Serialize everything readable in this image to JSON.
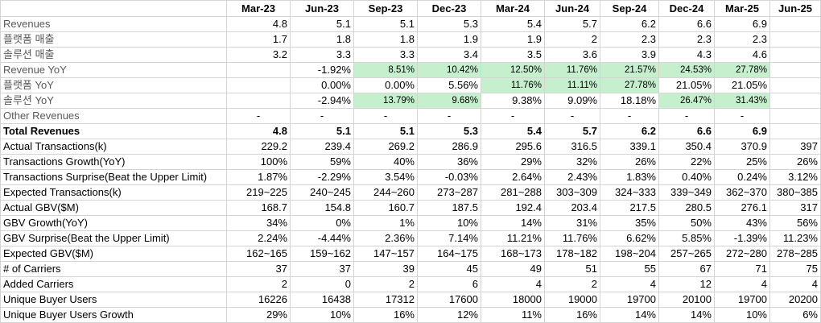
{
  "columns": [
    "",
    "Mar-23",
    "Jun-23",
    "Sep-23",
    "Dec-23",
    "Mar-24",
    "Jun-24",
    "Sep-24",
    "Dec-24",
    "Mar-25",
    "Jun-25"
  ],
  "rows": [
    {
      "label": "Revenues",
      "style": "gray",
      "cells": [
        "4.8",
        "5.1",
        "5.1",
        "5.3",
        "5.4",
        "5.7",
        "6.2",
        "6.6",
        "6.9",
        ""
      ]
    },
    {
      "label": "플랫폼 매출",
      "style": "gray",
      "cells": [
        "1.7",
        "1.8",
        "1.8",
        "1.9",
        "1.9",
        "2",
        "2.3",
        "2.3",
        "2.3",
        ""
      ]
    },
    {
      "label": "솔루션 매출",
      "style": "gray",
      "cells": [
        "3.2",
        "3.3",
        "3.3",
        "3.4",
        "3.5",
        "3.6",
        "3.9",
        "4.3",
        "4.6",
        ""
      ]
    },
    {
      "label": "Revenue YoY",
      "style": "gray",
      "green": [
        2,
        3,
        4,
        5,
        6,
        7,
        8
      ],
      "cells": [
        "",
        "-1.92%",
        "8.51%",
        "10.42%",
        "12.50%",
        "11.76%",
        "21.57%",
        "24.53%",
        "27.78%",
        ""
      ]
    },
    {
      "label": "플랫폼 YoY",
      "style": "gray",
      "green": [
        4,
        5,
        6
      ],
      "cells": [
        "",
        "0.00%",
        "0.00%",
        "5.56%",
        "11.76%",
        "11.11%",
        "27.78%",
        "21.05%",
        "21.05%",
        ""
      ]
    },
    {
      "label": "솔루션 YoY",
      "style": "gray",
      "green": [
        2,
        3,
        7,
        8
      ],
      "cells": [
        "",
        "-2.94%",
        "13.79%",
        "9.68%",
        "9.38%",
        "9.09%",
        "18.18%",
        "26.47%",
        "31.43%",
        ""
      ]
    },
    {
      "label": "Other Revenues",
      "style": "gray",
      "dash": true,
      "cells": [
        "-",
        "-",
        "-",
        "-",
        "-",
        "-",
        "-",
        "-",
        "-",
        ""
      ]
    },
    {
      "label": "Total Revenues",
      "style": "bold",
      "cells": [
        "4.8",
        "5.1",
        "5.1",
        "5.3",
        "5.4",
        "5.7",
        "6.2",
        "6.6",
        "6.9",
        ""
      ]
    },
    {
      "label": "Actual Transactions(k)",
      "cells": [
        "229.2",
        "239.4",
        "269.2",
        "286.9",
        "295.6",
        "316.5",
        "339.1",
        "350.4",
        "370.9",
        "397"
      ]
    },
    {
      "label": "Transactions Growth(YoY)",
      "cells": [
        "100%",
        "59%",
        "40%",
        "36%",
        "29%",
        "32%",
        "26%",
        "22%",
        "25%",
        "26%"
      ]
    },
    {
      "label": "Transactions Surprise(Beat the Upper Limit)",
      "cells": [
        "1.87%",
        "-2.29%",
        "3.54%",
        "-0.03%",
        "2.64%",
        "2.43%",
        "1.83%",
        "0.40%",
        "0.24%",
        "3.12%"
      ]
    },
    {
      "label": "Expected Transactions(k)",
      "cells": [
        "219~225",
        "240~245",
        "244~260",
        "273~287",
        "281~288",
        "303~309",
        "324~333",
        "339~349",
        "362~370",
        "380~385"
      ]
    },
    {
      "label": "Actual GBV($M)",
      "cells": [
        "168.7",
        "154.8",
        "160.7",
        "187.5",
        "192.4",
        "203.4",
        "217.5",
        "280.5",
        "276.1",
        "317"
      ]
    },
    {
      "label": "GBV Growth(YoY)",
      "cells": [
        "34%",
        "0%",
        "1%",
        "10%",
        "14%",
        "31%",
        "35%",
        "50%",
        "43%",
        "56%"
      ]
    },
    {
      "label": "GBV Surprise(Beat the Upper Limit)",
      "cells": [
        "2.24%",
        "-4.44%",
        "2.36%",
        "7.14%",
        "11.21%",
        "11.76%",
        "6.62%",
        "5.85%",
        "-1.39%",
        "11.23%"
      ]
    },
    {
      "label": "Expected GBV($M)",
      "cells": [
        "162~165",
        "159~162",
        "147~157",
        "164~175",
        "168~173",
        "178~182",
        "198~204",
        "257~265",
        "272~280",
        "278~285"
      ]
    },
    {
      "label": "# of Carriers",
      "cells": [
        "37",
        "37",
        "39",
        "45",
        "49",
        "51",
        "55",
        "67",
        "71",
        "75"
      ]
    },
    {
      "label": "Added Carriers",
      "cells": [
        "2",
        "0",
        "2",
        "6",
        "4",
        "2",
        "4",
        "12",
        "4",
        "4"
      ]
    },
    {
      "label": "Unique Buyer Users",
      "cells": [
        "16226",
        "16438",
        "17312",
        "17600",
        "18000",
        "19000",
        "19700",
        "20100",
        "19700",
        "20200"
      ]
    },
    {
      "label": "Unique Buyer Users Growth",
      "cells": [
        "29%",
        "10%",
        "16%",
        "12%",
        "11%",
        "16%",
        "14%",
        "14%",
        "10%",
        "6%"
      ]
    }
  ]
}
